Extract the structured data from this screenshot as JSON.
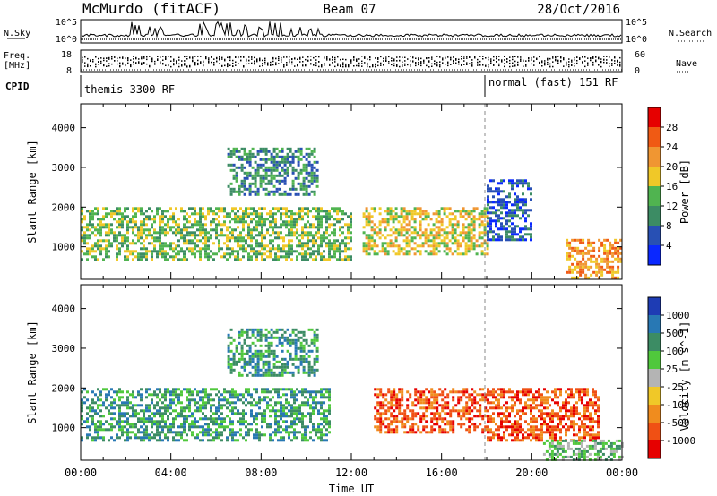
{
  "header": {
    "station": "McMurdo (fitACF)",
    "beam": "Beam 07",
    "date": "28/Oct/2016"
  },
  "summary_panel": {
    "left_labels": [
      "N.Sky",
      "Freq.",
      "[MHz]",
      "CPID"
    ],
    "right_labels": [
      "N.Search",
      "Nave"
    ],
    "nsky_ticks": [
      "10^5",
      "10^0"
    ],
    "nsearch_ticks": [
      "10^5",
      "10^0"
    ],
    "freq_ticks": [
      "18",
      "8"
    ],
    "nave_ticks": [
      "60",
      "0"
    ],
    "cpid_segments": [
      {
        "label": "themis 3300 RF",
        "start_hour": 0,
        "end_hour": 18
      },
      {
        "label": "normal (fast) 151 RF",
        "start_hour": 18,
        "end_hour": 24
      }
    ]
  },
  "chart_data": [
    {
      "type": "heatmap",
      "quantity": "power",
      "ylabel": "Slant Range [km]",
      "ylim": [
        180,
        4600
      ],
      "yticks": [
        1000,
        2000,
        3000,
        4000
      ],
      "xlim_hours": [
        0,
        24
      ],
      "colorbar": {
        "label": "Power [dB]",
        "ticks": [
          "4",
          "8",
          "12",
          "16",
          "20",
          "24",
          "28"
        ],
        "colors": [
          "#0a28ff",
          "#2850b4",
          "#3c8c64",
          "#50b450",
          "#f0c828",
          "#f09632",
          "#f05a14",
          "#e60000"
        ]
      },
      "bands": [
        {
          "start_hour": 0.0,
          "end_hour": 12.0,
          "range_low_km": 700,
          "range_high_km": 2000,
          "level": 3
        },
        {
          "start_hour": 6.5,
          "end_hour": 10.5,
          "range_low_km": 2300,
          "range_high_km": 3500,
          "level": 2
        },
        {
          "start_hour": 12.5,
          "end_hour": 18.0,
          "range_low_km": 800,
          "range_high_km": 2000,
          "level": 4
        },
        {
          "start_hour": 18.0,
          "end_hour": 20.0,
          "range_low_km": 1200,
          "range_high_km": 2700,
          "level": 1
        },
        {
          "start_hour": 21.5,
          "end_hour": 24.0,
          "range_low_km": 250,
          "range_high_km": 1200,
          "level": 5
        }
      ]
    },
    {
      "type": "heatmap",
      "quantity": "velocity",
      "ylabel": "Slant Range [km]",
      "ylim": [
        180,
        4600
      ],
      "yticks": [
        1000,
        2000,
        3000,
        4000
      ],
      "xlim_hours": [
        0,
        24
      ],
      "xticks": [
        "00:00",
        "04:00",
        "08:00",
        "12:00",
        "16:00",
        "20:00",
        "00:00"
      ],
      "xlabel": "Time UT",
      "colorbar": {
        "label": "Velocity [m s^-1]",
        "ticks": [
          "1000",
          "500",
          "100",
          "25",
          "-25",
          "-100",
          "-500",
          "-1000"
        ],
        "colors": [
          "#1e3cb4",
          "#2878b4",
          "#3c8c64",
          "#50c83c",
          "#b4b4b4",
          "#f0c828",
          "#f08c1e",
          "#f05014",
          "#e60000"
        ]
      },
      "bands": [
        {
          "start_hour": 0.0,
          "end_hour": 11.0,
          "range_low_km": 700,
          "range_high_km": 2000,
          "level": 2
        },
        {
          "start_hour": 6.5,
          "end_hour": 10.5,
          "range_low_km": 2300,
          "range_high_km": 3500,
          "level": 2
        },
        {
          "start_hour": 13.0,
          "end_hour": 18.0,
          "range_low_km": 900,
          "range_high_km": 2000,
          "level": 7
        },
        {
          "start_hour": 18.0,
          "end_hour": 23.0,
          "range_low_km": 700,
          "range_high_km": 2000,
          "level": 7
        },
        {
          "start_hour": 20.5,
          "end_hour": 24.0,
          "range_low_km": 200,
          "range_high_km": 700,
          "level": 3
        }
      ]
    }
  ]
}
